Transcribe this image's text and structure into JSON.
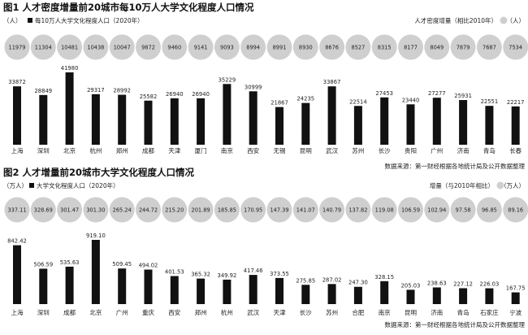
{
  "chart_data": [
    {
      "type": "bar",
      "title": "图1 人才密度增量前20城市每10万人大学文化程度人口情况",
      "left_unit": "（人）",
      "bar_legend": "每10万人大学文化程度人口（2020年）",
      "circle_legend": "人才密度增量（相比2010年）",
      "right_unit": "（人）",
      "source": "数据来源：第一财经根据各地统计局及公开数据整理",
      "categories": [
        "上海",
        "深圳",
        "北京",
        "杭州",
        "郑州",
        "成都",
        "天津",
        "厦门",
        "南京",
        "西安",
        "无锡",
        "昆明",
        "武汉",
        "苏州",
        "长沙",
        "贵阳",
        "广州",
        "济南",
        "青岛",
        "长春"
      ],
      "series": [
        {
          "name": "每10万人大学文化程度人口（2020年）",
          "kind": "bar",
          "values": [
            "33872",
            "28849",
            "41980",
            "29317",
            "28992",
            "25582",
            "26940",
            "26940",
            "35229",
            "30999",
            "21867",
            "24235",
            "33867",
            "22514",
            "27453",
            "23440",
            "27277",
            "25931",
            "22551",
            "22217"
          ]
        },
        {
          "name": "人才密度增量（相比2010年）",
          "kind": "circle",
          "values": [
            "11979",
            "11304",
            "10481",
            "10438",
            "10047",
            "9872",
            "9460",
            "9141",
            "9093",
            "8994",
            "8991",
            "8930",
            "8676",
            "8527",
            "8315",
            "8177",
            "8049",
            "7879",
            "7687",
            "7534"
          ]
        }
      ]
    },
    {
      "type": "bar",
      "title": "图2 人才增量前20城市大学文化程度人口情况",
      "left_unit": "（万人）",
      "bar_legend": "大学文化程度人口（2020年）",
      "circle_legend": "增量（与2010年相比）",
      "right_unit": "（万人）",
      "source": "数据来源：第一财经根据各地统计局及公开数据整理",
      "categories": [
        "上海",
        "深圳",
        "成都",
        "北京",
        "广州",
        "重庆",
        "西安",
        "郑州",
        "杭州",
        "武汉",
        "天津",
        "长沙",
        "苏州",
        "合肥",
        "南京",
        "昆明",
        "济南",
        "青岛",
        "石家庄",
        "宁波"
      ],
      "series": [
        {
          "name": "大学文化程度人口（2020年）",
          "kind": "bar",
          "values": [
            "842.42",
            "506.59",
            "535.63",
            "919.10",
            "509.45",
            "494.02",
            "401.53",
            "365.32",
            "349.92",
            "417.46",
            "373.55",
            "275.85",
            "287.02",
            "247.30",
            "328.15",
            "205.03",
            "238.63",
            "227.12",
            "226.03",
            "167.75"
          ]
        },
        {
          "name": "增量（与2010年相比）",
          "kind": "circle",
          "values": [
            "337.11",
            "328.69",
            "301.47",
            "301.30",
            "265.24",
            "244.72",
            "215.20",
            "201.89",
            "185.85",
            "170.95",
            "147.39",
            "141.07",
            "140.79",
            "137.82",
            "119.08",
            "106.59",
            "102.94",
            "97.58",
            "96.85",
            "89.16"
          ]
        }
      ]
    }
  ]
}
